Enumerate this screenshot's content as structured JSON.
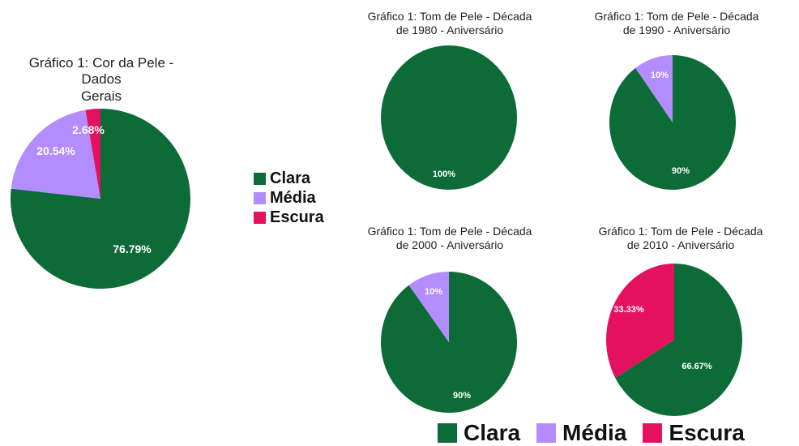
{
  "colors": {
    "Clara": "#0d6b37",
    "Média": "#b38cff",
    "Escura": "#e4115f"
  },
  "legend_side": [
    "Clara",
    "Média",
    "Escura"
  ],
  "legend_bottom": [
    "Clara",
    "Média",
    "Escura"
  ],
  "chart_data": [
    {
      "type": "pie",
      "title": "Gráfico 1: Cor da Pele - Dados Gerais",
      "title_lines": [
        "Gráfico 1: Cor da Pele - Dados",
        "Gerais"
      ],
      "slices": [
        {
          "label": "Clara",
          "value": 76.79,
          "text": "76.79%"
        },
        {
          "label": "Média",
          "value": 20.54,
          "text": "20.54%"
        },
        {
          "label": "Escura",
          "value": 2.68,
          "text": "2.68%"
        }
      ]
    },
    {
      "type": "pie",
      "title": "Gráfico 1: Tom de Pele - Década de 1980 - Aniversário",
      "title_lines": [
        "Gráfico 1: Tom de Pele - Década",
        "de 1980 - Aniversário"
      ],
      "slices": [
        {
          "label": "Clara",
          "value": 100,
          "text": "100%"
        }
      ]
    },
    {
      "type": "pie",
      "title": "Gráfico 1: Tom de Pele - Década de 1990 - Aniversário",
      "title_lines": [
        "Gráfico 1: Tom de Pele - Década",
        "de 1990 - Aniversário"
      ],
      "slices": [
        {
          "label": "Clara",
          "value": 90,
          "text": "90%"
        },
        {
          "label": "Média",
          "value": 10,
          "text": "10%"
        }
      ]
    },
    {
      "type": "pie",
      "title": "Gráfico 1: Tom de Pele - Década de 2000 - Aniversário",
      "title_lines": [
        "Gráfico 1: Tom de Pele - Década",
        "de 2000 - Aniversário"
      ],
      "slices": [
        {
          "label": "Clara",
          "value": 90,
          "text": "90%"
        },
        {
          "label": "Média",
          "value": 10,
          "text": "10%"
        }
      ]
    },
    {
      "type": "pie",
      "title": "Gráfico 1: Tom de Pele - Década de 2010 - Aniversário",
      "title_lines": [
        "Gráfico 1: Tom de Pele - Década",
        "de 2010 - Aniversário"
      ],
      "slices": [
        {
          "label": "Clara",
          "value": 66.67,
          "text": "66.67%"
        },
        {
          "label": "Escura",
          "value": 33.33,
          "text": "33.33%"
        }
      ]
    }
  ]
}
